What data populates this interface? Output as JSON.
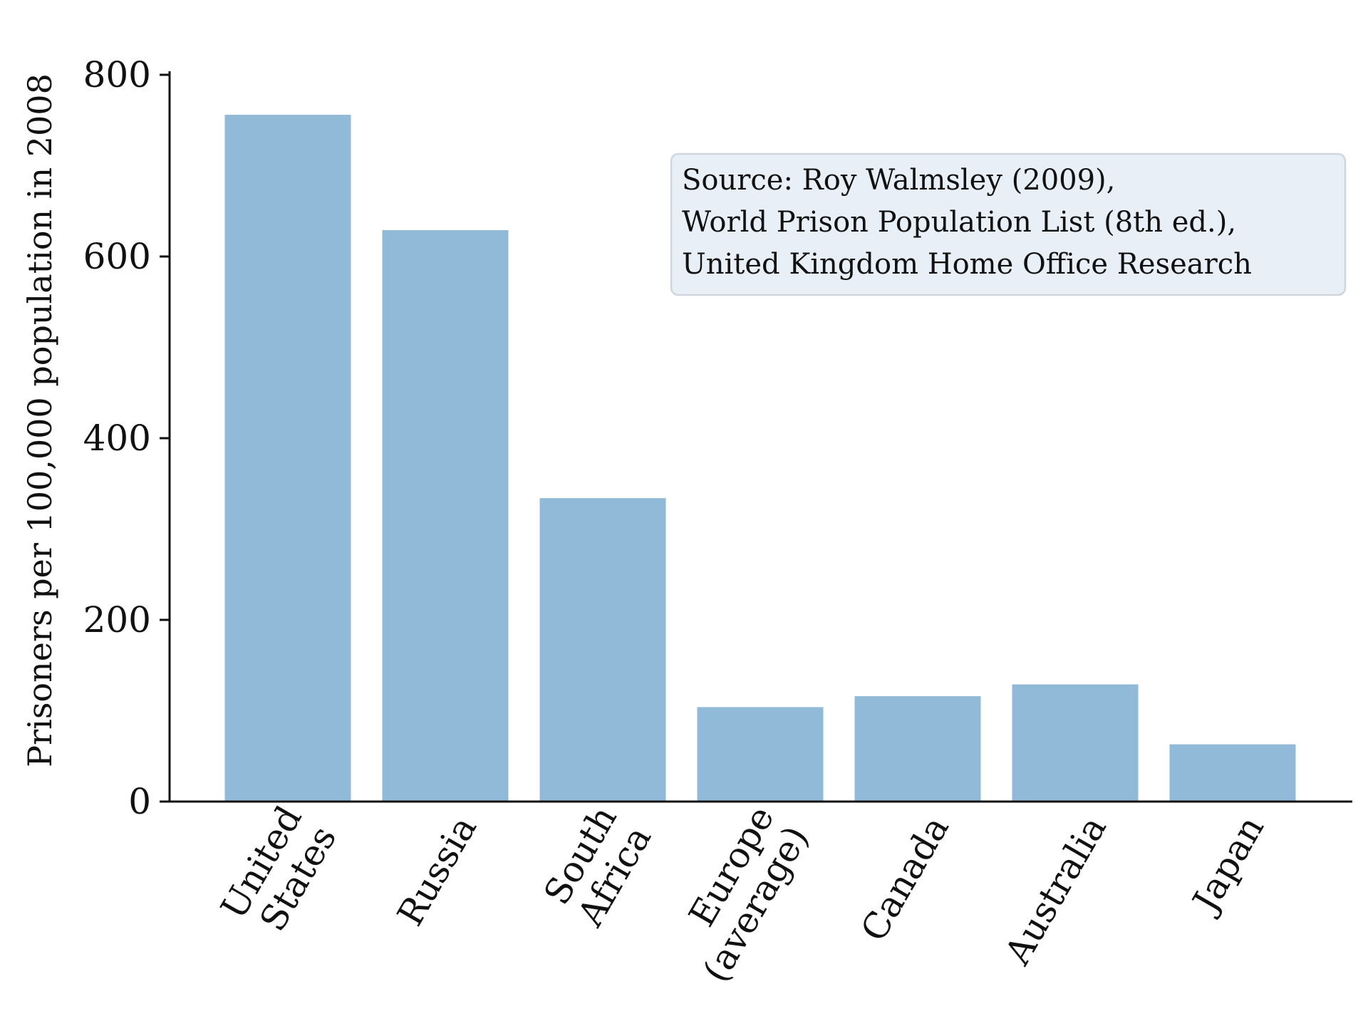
{
  "chart_data": {
    "type": "bar",
    "categories": [
      [
        "United",
        "States"
      ],
      [
        "Russia"
      ],
      [
        "South",
        "Africa"
      ],
      [
        "Europe",
        "(average)"
      ],
      [
        "Canada"
      ],
      [
        "Australia"
      ],
      [
        "Japan"
      ]
    ],
    "values": [
      756,
      629,
      334,
      104,
      116,
      129,
      63
    ],
    "title": "",
    "xlabel": "",
    "ylabel": "Prisoners per 100,000 population in 2008",
    "ylim": [
      0,
      800
    ],
    "yticks": [
      0,
      200,
      400,
      600,
      800
    ],
    "ytick_labels": [
      "0",
      "200",
      "400",
      "600",
      "800"
    ],
    "bar_color": "#91b9d8",
    "grid": false,
    "annotation": {
      "lines": [
        "Source: Roy Walmsley (2009),",
        "World Prison Population List (8th ed.),",
        "United Kingdom Home Office Research"
      ],
      "box_fill": "#e8eff7",
      "box_stroke": "#cfd6de"
    }
  }
}
